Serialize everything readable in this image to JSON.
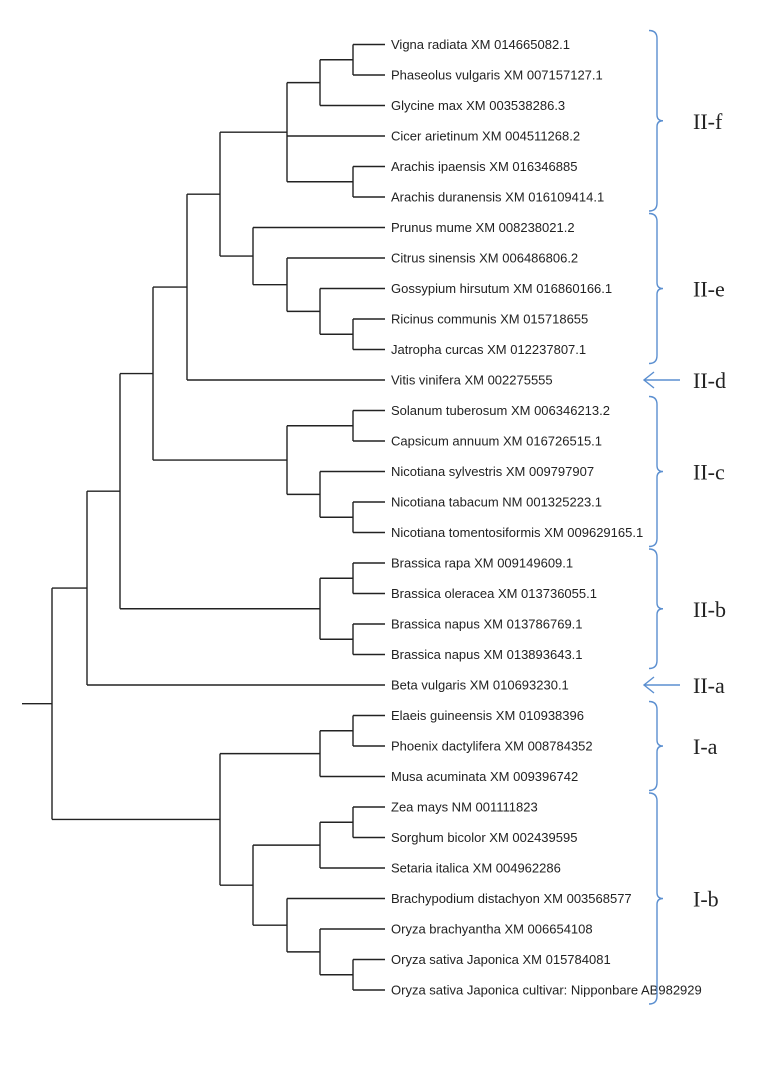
{
  "tree": {
    "title": "",
    "taxa": [
      "Vigna radiata XM 014665082.1",
      "Phaseolus vulgaris XM 007157127.1",
      "Glycine max XM 003538286.3",
      "Cicer arietinum XM 004511268.2",
      "Arachis ipaensis XM 016346885",
      "Arachis duranensis XM 016109414.1",
      "Prunus mume XM 008238021.2",
      "Citrus sinensis XM 006486806.2",
      "Gossypium hirsutum XM 016860166.1",
      "Ricinus communis XM 015718655",
      "Jatropha curcas XM 012237807.1",
      "Vitis vinifera XM 002275555",
      "Solanum tuberosum XM 006346213.2",
      "Capsicum annuum XM 016726515.1",
      "Nicotiana sylvestris XM 009797907",
      "Nicotiana tabacum NM 001325223.1",
      "Nicotiana tomentosiformis XM 009629165.1",
      "Brassica rapa XM 009149609.1",
      "Brassica oleracea XM 013736055.1",
      "Brassica napus XM 013786769.1",
      "Brassica napus XM 013893643.1",
      "Beta vulgaris XM 010693230.1",
      "Elaeis guineensis XM 010938396",
      "Phoenix dactylifera XM 008784352",
      "Musa acuminata XM 009396742",
      "Zea mays NM 001111823",
      "Sorghum bicolor XM 002439595",
      "Setaria italica XM 004962286",
      "Brachypodium distachyon XM 003568577",
      "Oryza brachyantha XM 006654108",
      "Oryza sativa Japonica XM 015784081",
      "Oryza sativa Japonica cultivar: Nipponbare AB982929"
    ],
    "clades": [
      {
        "label": "II-f",
        "marker": "brace",
        "first": 0,
        "last": 5
      },
      {
        "label": "II-e",
        "marker": "brace",
        "first": 6,
        "last": 10
      },
      {
        "label": "II-d",
        "marker": "arrow",
        "first": 11,
        "last": 11
      },
      {
        "label": "II-c",
        "marker": "brace",
        "first": 12,
        "last": 16
      },
      {
        "label": "II-b",
        "marker": "brace",
        "first": 17,
        "last": 20
      },
      {
        "label": "II-a",
        "marker": "arrow",
        "first": 21,
        "last": 21
      },
      {
        "label": "I-a",
        "marker": "brace",
        "first": 22,
        "last": 24
      },
      {
        "label": "I-b",
        "marker": "brace",
        "first": 25,
        "last": 31
      }
    ],
    "colors": {
      "branch": "#222222",
      "marker": "#5b8fd0",
      "text": "#222222"
    }
  }
}
